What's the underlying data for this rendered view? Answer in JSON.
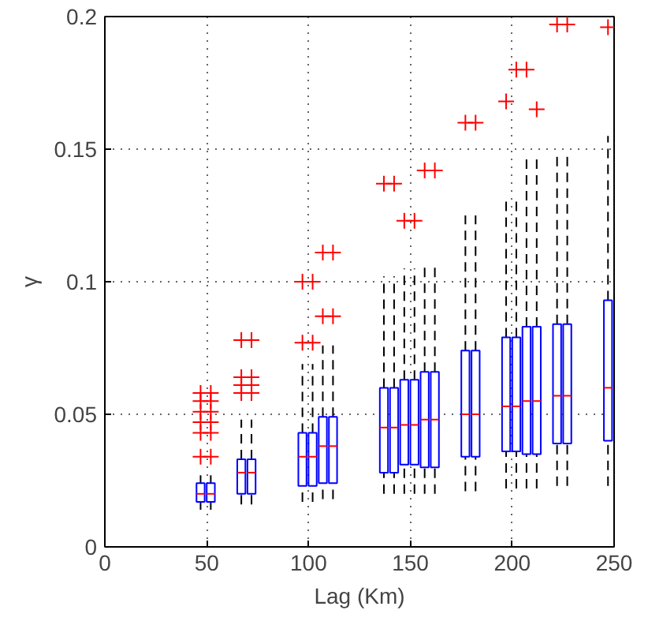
{
  "chart_data": {
    "type": "box",
    "xlabel": "Lag (Km)",
    "ylabel": "γ",
    "xlim": [
      0,
      250
    ],
    "ylim": [
      0,
      0.2
    ],
    "xticks": [
      0,
      50,
      100,
      150,
      200,
      250
    ],
    "yticks": [
      0,
      0.05,
      0.1,
      0.15,
      0.2
    ],
    "grid": true,
    "marker": "cross",
    "series": [
      {
        "color": "#0000ff",
        "x": [
          47,
          52,
          67,
          72,
          97,
          102,
          107,
          112,
          137,
          142,
          147,
          152,
          157,
          162,
          177,
          182,
          197,
          202,
          207,
          212,
          222,
          227,
          247
        ],
        "boxes": [
          {
            "low": 0.014,
            "q1": 0.017,
            "median": 0.02,
            "q3": 0.024,
            "high": 0.027,
            "outliers": [
              0.034,
              0.043,
              0.047,
              0.051,
              0.055,
              0.058
            ]
          },
          {
            "low": 0.014,
            "q1": 0.017,
            "median": 0.02,
            "q3": 0.024,
            "high": 0.027,
            "outliers": [
              0.034,
              0.043,
              0.047,
              0.051,
              0.055,
              0.058
            ]
          },
          {
            "low": 0.016,
            "q1": 0.02,
            "median": 0.028,
            "q3": 0.033,
            "high": 0.048,
            "outliers": [
              0.058,
              0.061,
              0.064,
              0.078
            ]
          },
          {
            "low": 0.016,
            "q1": 0.02,
            "median": 0.028,
            "q3": 0.033,
            "high": 0.048,
            "outliers": [
              0.058,
              0.061,
              0.064,
              0.078
            ]
          },
          {
            "low": 0.017,
            "q1": 0.023,
            "median": 0.034,
            "q3": 0.043,
            "high": 0.069,
            "outliers": [
              0.077,
              0.1
            ]
          },
          {
            "low": 0.017,
            "q1": 0.023,
            "median": 0.034,
            "q3": 0.043,
            "high": 0.069,
            "outliers": [
              0.077,
              0.1
            ]
          },
          {
            "low": 0.018,
            "q1": 0.024,
            "median": 0.038,
            "q3": 0.049,
            "high": 0.076,
            "outliers": [
              0.087,
              0.111
            ]
          },
          {
            "low": 0.018,
            "q1": 0.024,
            "median": 0.038,
            "q3": 0.049,
            "high": 0.076,
            "outliers": [
              0.087,
              0.111
            ]
          },
          {
            "low": 0.02,
            "q1": 0.028,
            "median": 0.045,
            "q3": 0.06,
            "high": 0.102,
            "outliers": [
              0.137
            ]
          },
          {
            "low": 0.02,
            "q1": 0.028,
            "median": 0.045,
            "q3": 0.06,
            "high": 0.102,
            "outliers": [
              0.137
            ]
          },
          {
            "low": 0.02,
            "q1": 0.031,
            "median": 0.046,
            "q3": 0.063,
            "high": 0.105,
            "outliers": [
              0.123
            ]
          },
          {
            "low": 0.02,
            "q1": 0.031,
            "median": 0.046,
            "q3": 0.063,
            "high": 0.105,
            "outliers": [
              0.123
            ]
          },
          {
            "low": 0.02,
            "q1": 0.03,
            "median": 0.048,
            "q3": 0.066,
            "high": 0.107,
            "outliers": [
              0.142
            ]
          },
          {
            "low": 0.02,
            "q1": 0.03,
            "median": 0.048,
            "q3": 0.066,
            "high": 0.107,
            "outliers": [
              0.142
            ]
          },
          {
            "low": 0.021,
            "q1": 0.034,
            "median": 0.05,
            "q3": 0.074,
            "high": 0.125,
            "outliers": [
              0.16
            ]
          },
          {
            "low": 0.021,
            "q1": 0.034,
            "median": 0.05,
            "q3": 0.074,
            "high": 0.125,
            "outliers": [
              0.16
            ]
          },
          {
            "low": 0.022,
            "q1": 0.036,
            "median": 0.053,
            "q3": 0.079,
            "high": 0.132,
            "outliers": [
              0.168
            ]
          },
          {
            "low": 0.022,
            "q1": 0.036,
            "median": 0.053,
            "q3": 0.079,
            "high": 0.132,
            "outliers": [
              0.18
            ]
          },
          {
            "low": 0.022,
            "q1": 0.035,
            "median": 0.055,
            "q3": 0.083,
            "high": 0.148,
            "outliers": [
              0.18
            ]
          },
          {
            "low": 0.022,
            "q1": 0.035,
            "median": 0.055,
            "q3": 0.083,
            "high": 0.148,
            "outliers": [
              0.165
            ]
          },
          {
            "low": 0.023,
            "q1": 0.039,
            "median": 0.057,
            "q3": 0.084,
            "high": 0.149,
            "outliers": [
              0.197
            ]
          },
          {
            "low": 0.023,
            "q1": 0.039,
            "median": 0.057,
            "q3": 0.084,
            "high": 0.149,
            "outliers": [
              0.197
            ]
          },
          {
            "low": 0.023,
            "q1": 0.04,
            "median": 0.06,
            "q3": 0.093,
            "high": 0.155,
            "outliers": [
              0.196
            ]
          }
        ]
      }
    ]
  }
}
